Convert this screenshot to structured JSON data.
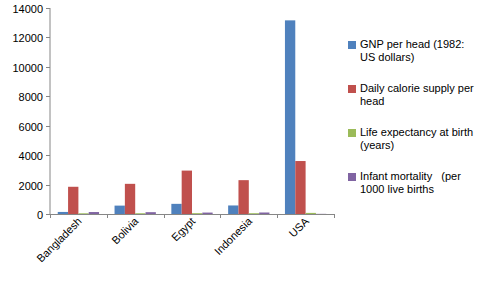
{
  "chart_data": {
    "type": "bar",
    "categories": [
      "Bangladesh",
      "Bolivia",
      "Egypt",
      "Indonesia",
      "USA"
    ],
    "series": [
      {
        "name": "GNP per head (1982: US dollars)",
        "color": "#4f81bd",
        "values": [
          140,
          570,
          690,
          580,
          13160
        ]
      },
      {
        "name": "Daily calorie supply per head",
        "color": "#c0504d",
        "values": [
          1850,
          2050,
          2950,
          2300,
          3600
        ]
      },
      {
        "name": "Life expectancy at birth (years)",
        "color": "#9bbb59",
        "values": [
          48,
          51,
          57,
          54,
          75
        ]
      },
      {
        "name": "Infant mortality   (per 1000 live births",
        "color": "#8064a2",
        "values": [
          133,
          124,
          97,
          102,
          11
        ]
      }
    ],
    "ylim": [
      0,
      14000
    ],
    "yticks": [
      0,
      2000,
      4000,
      6000,
      8000,
      10000,
      12000,
      14000
    ],
    "grid": false,
    "legend": "right"
  }
}
